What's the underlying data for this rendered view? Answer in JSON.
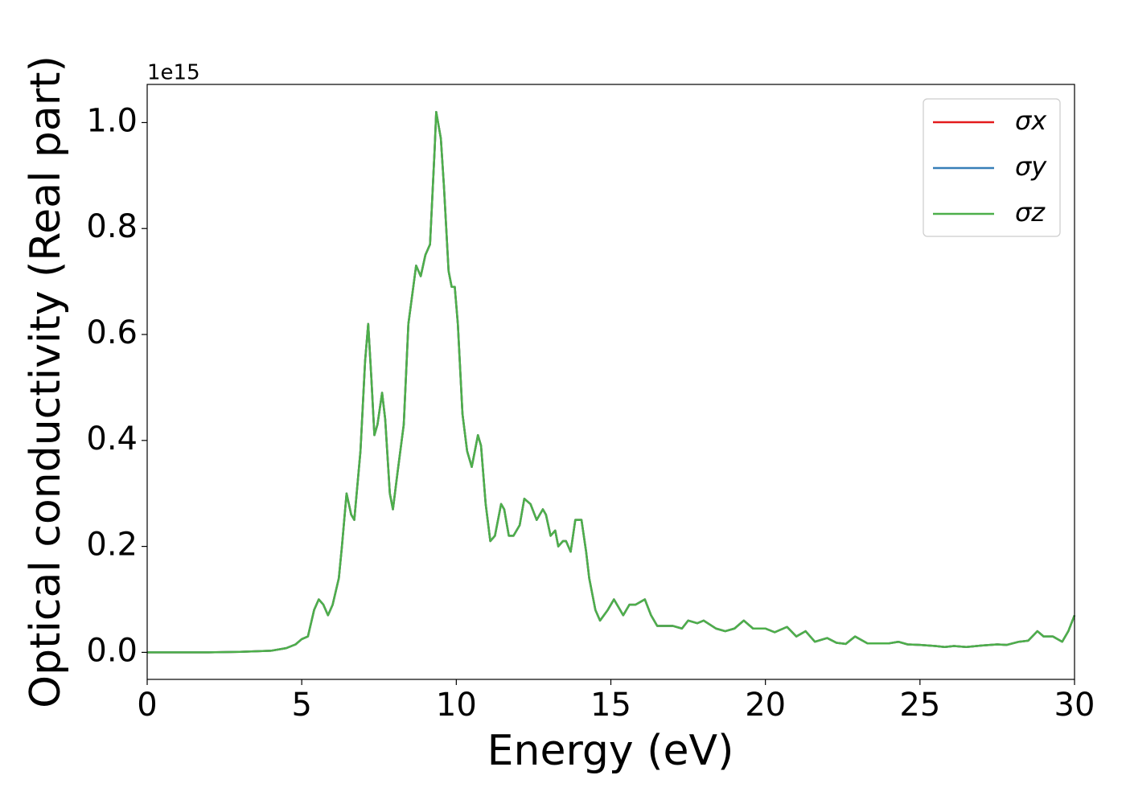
{
  "chart_data": {
    "type": "line",
    "xlabel": "Energy (eV)",
    "ylabel": "Optical conductivity (Real part)",
    "y_offset_label": "1e15",
    "xlim": [
      0,
      30
    ],
    "ylim": [
      -0.051,
      1.072
    ],
    "xticks": [
      0,
      5,
      10,
      15,
      20,
      25,
      30
    ],
    "yticks": [
      {
        "value": 0,
        "label": "0.0"
      },
      0.2,
      0.4,
      0.6,
      0.8,
      {
        "value": 1,
        "label": "1.0"
      }
    ],
    "grid": false,
    "legend": "upper right",
    "x": [
      0,
      1,
      2,
      3,
      4,
      4.5,
      4.8,
      5,
      5.2,
      5.4,
      5.55,
      5.7,
      5.85,
      6,
      6.2,
      6.3,
      6.45,
      6.6,
      6.7,
      6.9,
      7.05,
      7.15,
      7.25,
      7.35,
      7.45,
      7.6,
      7.7,
      7.85,
      7.95,
      8.1,
      8.3,
      8.45,
      8.7,
      8.85,
      9,
      9.15,
      9.3,
      9.35,
      9.5,
      9.6,
      9.75,
      9.85,
      9.95,
      10.05,
      10.2,
      10.35,
      10.5,
      10.7,
      10.8,
      10.95,
      11.1,
      11.25,
      11.45,
      11.55,
      11.7,
      11.85,
      12.05,
      12.2,
      12.4,
      12.6,
      12.8,
      12.9,
      13.05,
      13.2,
      13.3,
      13.45,
      13.55,
      13.7,
      13.85,
      14.05,
      14.2,
      14.3,
      14.5,
      14.65,
      14.9,
      15.1,
      15.3,
      15.4,
      15.6,
      15.8,
      16.1,
      16.3,
      16.5,
      17,
      17.3,
      17.5,
      17.8,
      18,
      18.4,
      18.7,
      19,
      19.3,
      19.6,
      20,
      20.3,
      20.7,
      21,
      21.3,
      21.6,
      22,
      22.3,
      22.6,
      22.9,
      23.3,
      23.6,
      24,
      24.3,
      24.6,
      25,
      25.5,
      25.8,
      26.1,
      26.5,
      27,
      27.5,
      27.8,
      28.2,
      28.5,
      28.8,
      29,
      29.3,
      29.6,
      29.8,
      30
    ],
    "series": [
      {
        "name": "σx",
        "color": "#e41a1c",
        "values": [
          0,
          0,
          0,
          0.001,
          0.003,
          0.008,
          0.015,
          0.025,
          0.03,
          0.08,
          0.1,
          0.09,
          0.07,
          0.09,
          0.14,
          0.2,
          0.3,
          0.26,
          0.25,
          0.38,
          0.55,
          0.62,
          0.52,
          0.41,
          0.43,
          0.49,
          0.44,
          0.3,
          0.27,
          0.34,
          0.43,
          0.62,
          0.73,
          0.71,
          0.75,
          0.77,
          0.95,
          1.02,
          0.97,
          0.88,
          0.72,
          0.69,
          0.69,
          0.62,
          0.45,
          0.38,
          0.35,
          0.41,
          0.39,
          0.28,
          0.21,
          0.22,
          0.28,
          0.27,
          0.22,
          0.22,
          0.24,
          0.29,
          0.28,
          0.25,
          0.27,
          0.26,
          0.22,
          0.23,
          0.2,
          0.21,
          0.21,
          0.19,
          0.25,
          0.25,
          0.19,
          0.14,
          0.08,
          0.06,
          0.08,
          0.1,
          0.08,
          0.07,
          0.09,
          0.09,
          0.1,
          0.07,
          0.05,
          0.05,
          0.045,
          0.06,
          0.055,
          0.06,
          0.045,
          0.04,
          0.045,
          0.06,
          0.045,
          0.045,
          0.038,
          0.048,
          0.03,
          0.04,
          0.02,
          0.027,
          0.018,
          0.016,
          0.03,
          0.017,
          0.017,
          0.017,
          0.02,
          0.015,
          0.014,
          0.012,
          0.01,
          0.012,
          0.01,
          0.013,
          0.015,
          0.014,
          0.02,
          0.022,
          0.04,
          0.03,
          0.03,
          0.02,
          0.04,
          0.07
        ]
      },
      {
        "name": "σy",
        "color": "#377eb8",
        "values": [
          0,
          0,
          0,
          0.001,
          0.003,
          0.008,
          0.015,
          0.025,
          0.03,
          0.08,
          0.1,
          0.09,
          0.07,
          0.09,
          0.14,
          0.2,
          0.3,
          0.26,
          0.25,
          0.38,
          0.55,
          0.62,
          0.52,
          0.41,
          0.43,
          0.49,
          0.44,
          0.3,
          0.27,
          0.34,
          0.43,
          0.62,
          0.73,
          0.71,
          0.75,
          0.77,
          0.95,
          1.02,
          0.97,
          0.88,
          0.72,
          0.69,
          0.69,
          0.62,
          0.45,
          0.38,
          0.35,
          0.41,
          0.39,
          0.28,
          0.21,
          0.22,
          0.28,
          0.27,
          0.22,
          0.22,
          0.24,
          0.29,
          0.28,
          0.25,
          0.27,
          0.26,
          0.22,
          0.23,
          0.2,
          0.21,
          0.21,
          0.19,
          0.25,
          0.25,
          0.19,
          0.14,
          0.08,
          0.06,
          0.08,
          0.1,
          0.08,
          0.07,
          0.09,
          0.09,
          0.1,
          0.07,
          0.05,
          0.05,
          0.045,
          0.06,
          0.055,
          0.06,
          0.045,
          0.04,
          0.045,
          0.06,
          0.045,
          0.045,
          0.038,
          0.048,
          0.03,
          0.04,
          0.02,
          0.027,
          0.018,
          0.016,
          0.03,
          0.017,
          0.017,
          0.017,
          0.02,
          0.015,
          0.014,
          0.012,
          0.01,
          0.012,
          0.01,
          0.013,
          0.015,
          0.014,
          0.02,
          0.022,
          0.04,
          0.03,
          0.03,
          0.02,
          0.04,
          0.07
        ]
      },
      {
        "name": "σz",
        "color": "#4daf4a",
        "values": [
          0,
          0,
          0,
          0.001,
          0.003,
          0.008,
          0.015,
          0.025,
          0.03,
          0.08,
          0.1,
          0.09,
          0.07,
          0.09,
          0.14,
          0.2,
          0.3,
          0.26,
          0.25,
          0.38,
          0.55,
          0.62,
          0.52,
          0.41,
          0.43,
          0.49,
          0.44,
          0.3,
          0.27,
          0.34,
          0.43,
          0.62,
          0.73,
          0.71,
          0.75,
          0.77,
          0.95,
          1.02,
          0.97,
          0.88,
          0.72,
          0.69,
          0.69,
          0.62,
          0.45,
          0.38,
          0.35,
          0.41,
          0.39,
          0.28,
          0.21,
          0.22,
          0.28,
          0.27,
          0.22,
          0.22,
          0.24,
          0.29,
          0.28,
          0.25,
          0.27,
          0.26,
          0.22,
          0.23,
          0.2,
          0.21,
          0.21,
          0.19,
          0.25,
          0.25,
          0.19,
          0.14,
          0.08,
          0.06,
          0.08,
          0.1,
          0.08,
          0.07,
          0.09,
          0.09,
          0.1,
          0.07,
          0.05,
          0.05,
          0.045,
          0.06,
          0.055,
          0.06,
          0.045,
          0.04,
          0.045,
          0.06,
          0.045,
          0.045,
          0.038,
          0.048,
          0.03,
          0.04,
          0.02,
          0.027,
          0.018,
          0.016,
          0.03,
          0.017,
          0.017,
          0.017,
          0.02,
          0.015,
          0.014,
          0.012,
          0.01,
          0.012,
          0.01,
          0.013,
          0.015,
          0.014,
          0.02,
          0.022,
          0.04,
          0.03,
          0.03,
          0.02,
          0.04,
          0.07
        ]
      }
    ]
  }
}
